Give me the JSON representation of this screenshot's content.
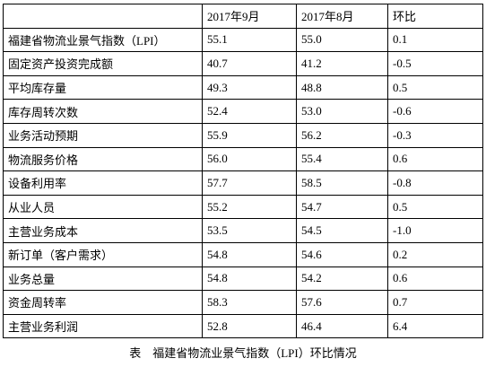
{
  "table": {
    "header": [
      "2017年9月",
      "2017年8月",
      "环比"
    ],
    "rows": [
      [
        "福建省物流业景气指数（LPI）",
        "55.1",
        "55.0",
        "0.1"
      ],
      [
        "固定资产投资完成额",
        "40.7",
        "41.2",
        "-0.5"
      ],
      [
        "平均库存量",
        "49.3",
        "48.8",
        "0.5"
      ],
      [
        "库存周转次数",
        "52.4",
        "53.0",
        "-0.6"
      ],
      [
        "业务活动预期",
        "55.9",
        "56.2",
        "-0.3"
      ],
      [
        "物流服务价格",
        "56.0",
        "55.4",
        "0.6"
      ],
      [
        "设备利用率",
        "57.7",
        "58.5",
        "-0.8"
      ],
      [
        "从业人员",
        "55.2",
        "54.7",
        "0.5"
      ],
      [
        "主营业务成本",
        "53.5",
        "54.5",
        "-1.0"
      ],
      [
        "新订单（客户需求）",
        "54.8",
        "54.6",
        "0.2"
      ],
      [
        "业务总量",
        "54.8",
        "54.2",
        "0.6"
      ],
      [
        "资金周转率",
        "58.3",
        "57.6",
        "0.7"
      ],
      [
        "主营业务利润",
        "52.8",
        "46.4",
        "6.4"
      ]
    ],
    "caption": "表　福建省物流业景气指数（LPI）环比情况"
  }
}
